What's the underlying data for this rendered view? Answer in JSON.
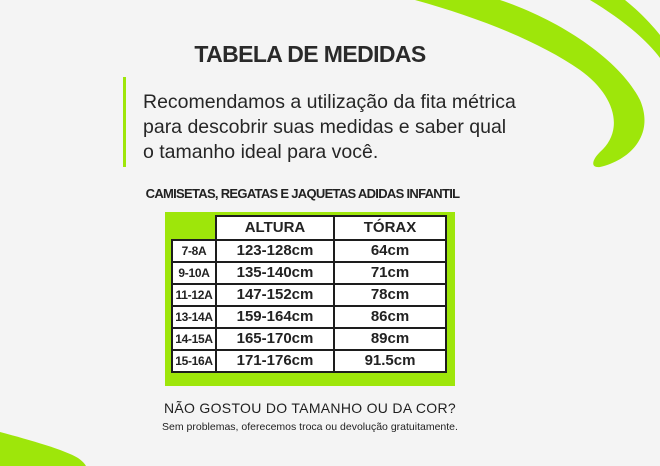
{
  "title": "TABELA DE MEDIDAS",
  "intro_lines": [
    "Recomendamos a utilização da fita métrica",
    "para descobrir suas medidas e saber qual",
    "o tamanho ideal para você."
  ],
  "table": {
    "title": "CAMISETAS, REGATAS E JAQUETAS ADIDAS INFANTIL",
    "headers": [
      "ALTURA",
      "TÓRAX"
    ],
    "rows": [
      {
        "size": "7-8A",
        "altura": "123-128cm",
        "torax": "64cm"
      },
      {
        "size": "9-10A",
        "altura": "135-140cm",
        "torax": "71cm"
      },
      {
        "size": "11-12A",
        "altura": "147-152cm",
        "torax": "78cm"
      },
      {
        "size": "13-14A",
        "altura": "159-164cm",
        "torax": "86cm"
      },
      {
        "size": "14-15A",
        "altura": "165-170cm",
        "torax": "89cm"
      },
      {
        "size": "15-16A",
        "altura": "171-176cm",
        "torax": "91.5cm"
      }
    ]
  },
  "footer": {
    "question": "NÃO GOSTOU DO TAMANHO OU DA COR?",
    "answer": "Sem problemas, oferecemos troca ou devolução gratuitamente."
  },
  "colors": {
    "accent": "#9ee60a",
    "background": "#f4f4f4",
    "text": "#222222"
  }
}
